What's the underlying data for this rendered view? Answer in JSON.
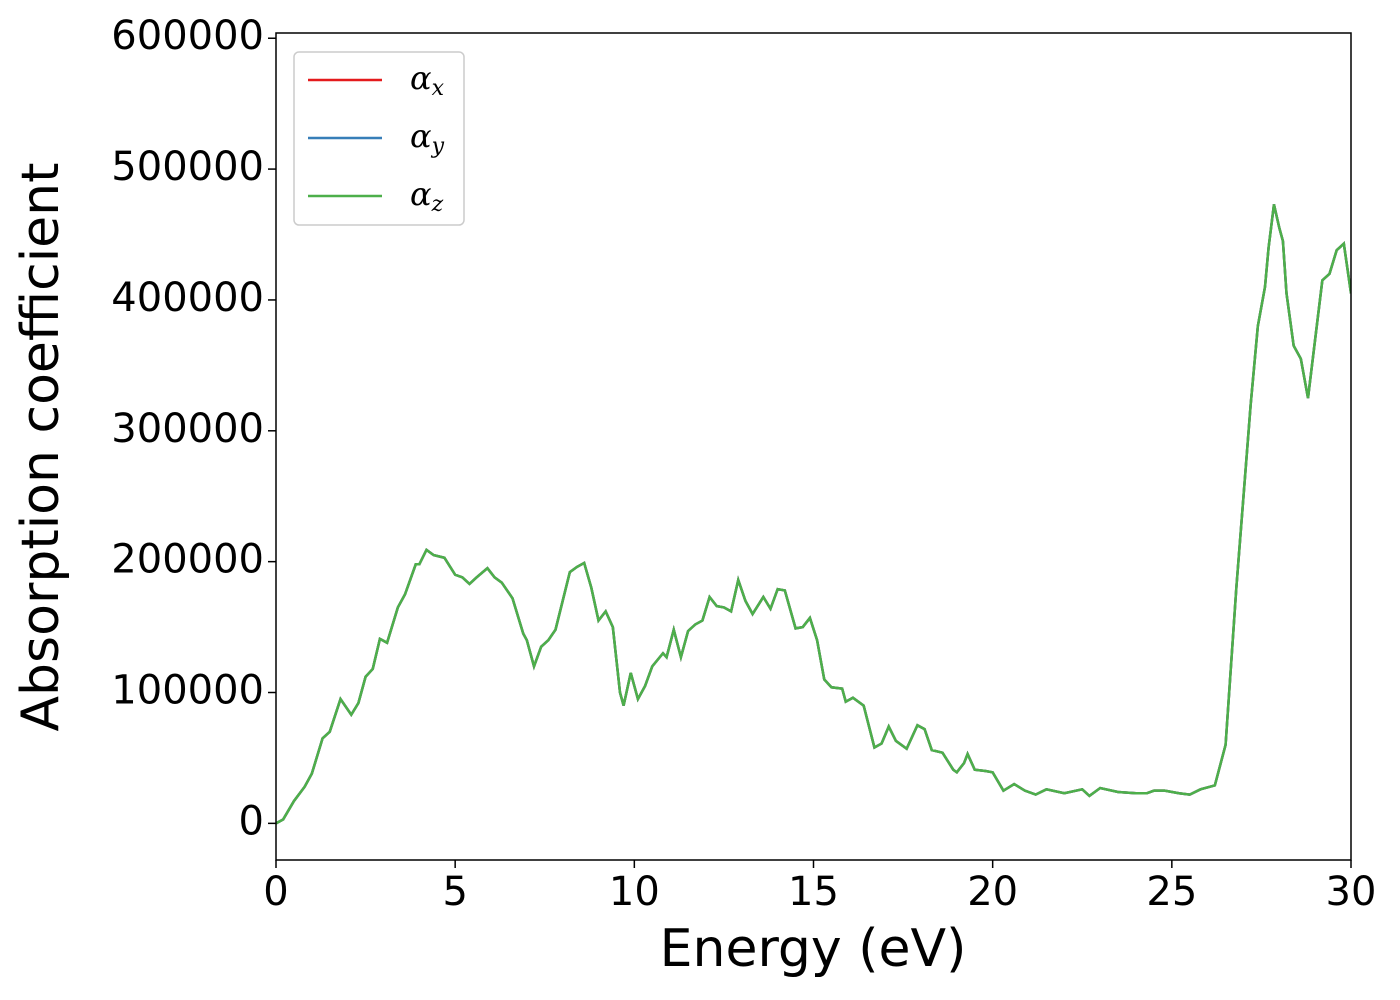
{
  "chart_data": {
    "type": "line",
    "xlabel": "Energy (eV)",
    "ylabel": "Absorption coefficient",
    "xlim": [
      0,
      30
    ],
    "xticks": [
      0,
      5,
      10,
      15,
      20,
      25,
      30
    ],
    "ylim": [
      -28000,
      604000
    ],
    "yticks": [
      0,
      100000,
      200000,
      300000,
      400000,
      500000,
      600000
    ],
    "legend": "upper left",
    "x": [
      0,
      0.2,
      0.5,
      0.8,
      1.0,
      1.3,
      1.5,
      1.8,
      2.1,
      2.3,
      2.5,
      2.7,
      2.9,
      3.1,
      3.4,
      3.6,
      3.9,
      4.0,
      4.2,
      4.4,
      4.7,
      5.0,
      5.2,
      5.4,
      5.6,
      5.9,
      6.1,
      6.3,
      6.6,
      6.9,
      7.0,
      7.2,
      7.4,
      7.6,
      7.8,
      8.0,
      8.2,
      8.4,
      8.6,
      8.8,
      9.0,
      9.2,
      9.4,
      9.6,
      9.7,
      9.9,
      10.1,
      10.3,
      10.5,
      10.8,
      10.9,
      11.1,
      11.3,
      11.5,
      11.7,
      11.9,
      12.1,
      12.3,
      12.5,
      12.7,
      12.9,
      13.1,
      13.3,
      13.6,
      13.8,
      14.0,
      14.2,
      14.5,
      14.7,
      14.9,
      15.1,
      15.3,
      15.5,
      15.8,
      15.9,
      16.1,
      16.4,
      16.7,
      16.9,
      17.1,
      17.3,
      17.6,
      17.9,
      18.1,
      18.3,
      18.6,
      18.9,
      19.0,
      19.2,
      19.3,
      19.5,
      19.8,
      20.0,
      20.3,
      20.6,
      20.9,
      21.2,
      21.5,
      22.0,
      22.5,
      22.7,
      23.0,
      23.5,
      24.0,
      24.3,
      24.5,
      24.8,
      25.2,
      25.5,
      25.8,
      26.2,
      26.5,
      26.8,
      27.0,
      27.2,
      27.4,
      27.6,
      27.7,
      27.85,
      28.0,
      28.1,
      28.2,
      28.4,
      28.6,
      28.8,
      29.0,
      29.2,
      29.4,
      29.6,
      29.8,
      30.0
    ],
    "series": [
      {
        "name": "αx",
        "color": "#e41a1c",
        "values": [
          0,
          3000,
          17000,
          28000,
          38000,
          65000,
          70000,
          95000,
          83000,
          92000,
          112000,
          118000,
          141000,
          138000,
          165000,
          175000,
          198000,
          198000,
          209000,
          205000,
          203000,
          190000,
          188000,
          183000,
          188000,
          195000,
          188000,
          184000,
          172000,
          145000,
          140000,
          120000,
          135000,
          140000,
          148000,
          170000,
          192000,
          196000,
          199000,
          180000,
          155000,
          162000,
          150000,
          100000,
          90000,
          115000,
          95000,
          105000,
          120000,
          130000,
          127000,
          148000,
          127000,
          147000,
          152000,
          155000,
          173000,
          166000,
          165000,
          162000,
          186000,
          170000,
          160000,
          173000,
          164000,
          179000,
          178000,
          149000,
          150000,
          157000,
          140000,
          110000,
          104000,
          103000,
          93000,
          96000,
          90000,
          58000,
          61000,
          74000,
          63000,
          57000,
          75000,
          72000,
          56000,
          54000,
          41000,
          39000,
          46000,
          53000,
          41000,
          40000,
          39000,
          25000,
          30000,
          25000,
          22000,
          26000,
          23000,
          26000,
          21000,
          27000,
          24000,
          23000,
          23000,
          25000,
          25000,
          23000,
          22000,
          26000,
          29000,
          60000,
          180000,
          250000,
          320000,
          380000,
          410000,
          440000,
          473000,
          455000,
          445000,
          405000,
          365000,
          355000,
          325000,
          370000,
          415000,
          420000,
          438000,
          443000,
          405000
        ]
      },
      {
        "name": "αy",
        "color": "#377eb8",
        "values": [
          0,
          3000,
          17000,
          28000,
          38000,
          65000,
          70000,
          95000,
          83000,
          92000,
          112000,
          118000,
          141000,
          138000,
          165000,
          175000,
          198000,
          198000,
          209000,
          205000,
          203000,
          190000,
          188000,
          183000,
          188000,
          195000,
          188000,
          184000,
          172000,
          145000,
          140000,
          120000,
          135000,
          140000,
          148000,
          170000,
          192000,
          196000,
          199000,
          180000,
          155000,
          162000,
          150000,
          100000,
          90000,
          115000,
          95000,
          105000,
          120000,
          130000,
          127000,
          148000,
          127000,
          147000,
          152000,
          155000,
          173000,
          166000,
          165000,
          162000,
          186000,
          170000,
          160000,
          173000,
          164000,
          179000,
          178000,
          149000,
          150000,
          157000,
          140000,
          110000,
          104000,
          103000,
          93000,
          96000,
          90000,
          58000,
          61000,
          74000,
          63000,
          57000,
          75000,
          72000,
          56000,
          54000,
          41000,
          39000,
          46000,
          53000,
          41000,
          40000,
          39000,
          25000,
          30000,
          25000,
          22000,
          26000,
          23000,
          26000,
          21000,
          27000,
          24000,
          23000,
          23000,
          25000,
          25000,
          23000,
          22000,
          26000,
          29000,
          60000,
          180000,
          250000,
          320000,
          380000,
          410000,
          440000,
          473000,
          455000,
          445000,
          405000,
          365000,
          355000,
          325000,
          370000,
          415000,
          420000,
          438000,
          443000,
          405000
        ]
      },
      {
        "name": "αz",
        "color": "#4daf4a",
        "values": [
          0,
          3000,
          17000,
          28000,
          38000,
          65000,
          70000,
          95000,
          83000,
          92000,
          112000,
          118000,
          141000,
          138000,
          165000,
          175000,
          198000,
          198000,
          209000,
          205000,
          203000,
          190000,
          188000,
          183000,
          188000,
          195000,
          188000,
          184000,
          172000,
          145000,
          140000,
          120000,
          135000,
          140000,
          148000,
          170000,
          192000,
          196000,
          199000,
          180000,
          155000,
          162000,
          150000,
          100000,
          90000,
          115000,
          95000,
          105000,
          120000,
          130000,
          127000,
          148000,
          127000,
          147000,
          152000,
          155000,
          173000,
          166000,
          165000,
          162000,
          186000,
          170000,
          160000,
          173000,
          164000,
          179000,
          178000,
          149000,
          150000,
          157000,
          140000,
          110000,
          104000,
          103000,
          93000,
          96000,
          90000,
          58000,
          61000,
          74000,
          63000,
          57000,
          75000,
          72000,
          56000,
          54000,
          41000,
          39000,
          46000,
          53000,
          41000,
          40000,
          39000,
          25000,
          30000,
          25000,
          22000,
          26000,
          23000,
          26000,
          21000,
          27000,
          24000,
          23000,
          23000,
          25000,
          25000,
          23000,
          22000,
          26000,
          29000,
          60000,
          180000,
          250000,
          320000,
          380000,
          410000,
          440000,
          473000,
          455000,
          445000,
          405000,
          365000,
          355000,
          325000,
          370000,
          415000,
          420000,
          438000,
          443000,
          405000
        ]
      }
    ]
  }
}
